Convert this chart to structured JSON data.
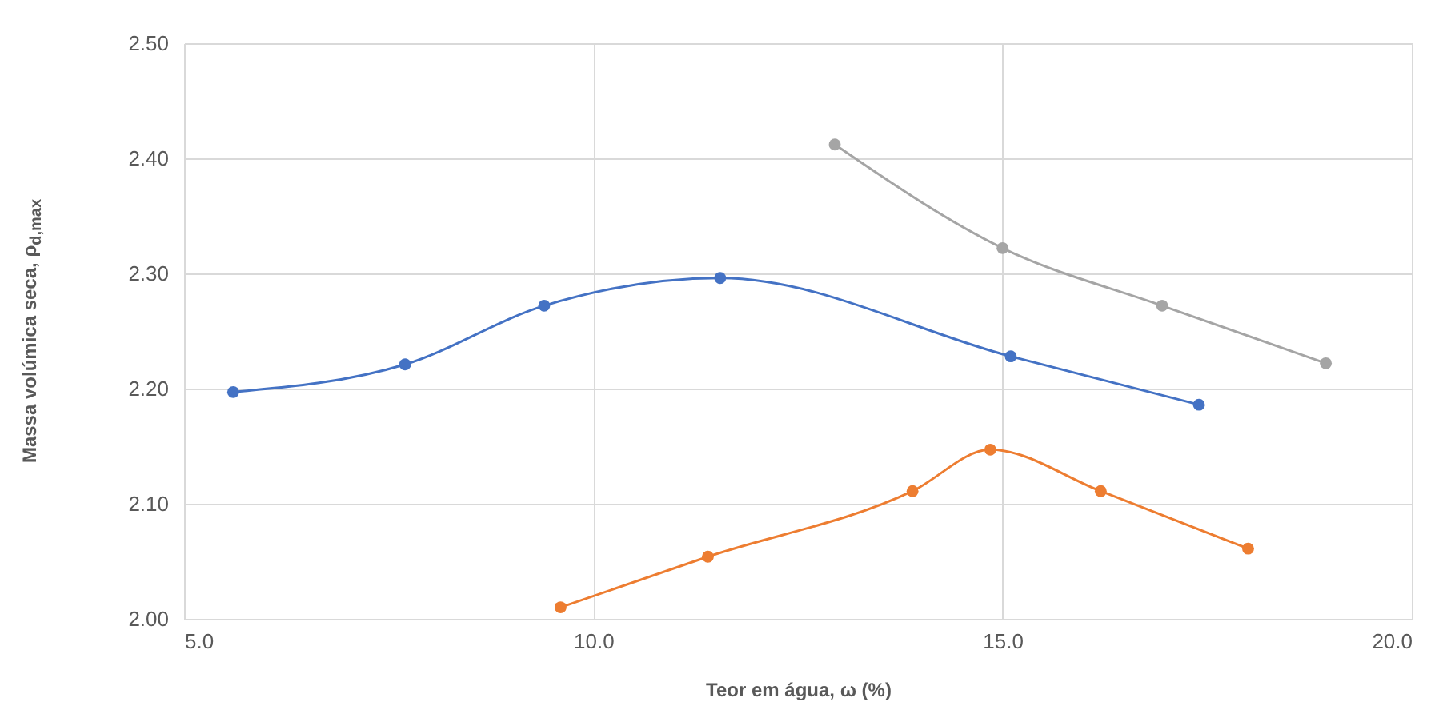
{
  "chart_data": {
    "type": "line",
    "xlabel": "Teor em água, ω (%)",
    "ylabel": "Massa volúmica seca, ρ$_{d,max}$",
    "xlim": [
      5,
      20
    ],
    "xticks": [
      {
        "value": 5,
        "label": "5.0"
      },
      {
        "value": 10,
        "label": "10.0"
      },
      {
        "value": 15,
        "label": "15.0"
      },
      {
        "value": 20,
        "label": "20.0"
      }
    ],
    "ylim": [
      2,
      2.5
    ],
    "yticks": [
      {
        "value": 2,
        "label": "2.00"
      },
      {
        "value": 2.1,
        "label": "2.10"
      },
      {
        "value": 2.2,
        "label": "2.20"
      },
      {
        "value": 2.3,
        "label": "2.30"
      },
      {
        "value": 2.4,
        "label": "2.40"
      },
      {
        "value": 2.5,
        "label": "2.50"
      }
    ],
    "grid": true,
    "marker": "circle",
    "line_style": "solid",
    "series": [
      {
        "color": "#4472c4",
        "x": [
          5.6,
          7.7,
          9.4,
          11.55,
          15.1,
          17.4
        ],
        "values": [
          2.197,
          2.221,
          2.272,
          2.296,
          2.228,
          2.186
        ]
      },
      {
        "color": "#ed7d31",
        "x": [
          9.6,
          11.4,
          13.9,
          14.85,
          16.2,
          18.0
        ],
        "values": [
          2.01,
          2.054,
          2.111,
          2.147,
          2.111,
          2.061
        ]
      },
      {
        "color": "#a5a5a5",
        "x": [
          12.95,
          15.0,
          16.95,
          18.95
        ],
        "values": [
          2.412,
          2.322,
          2.272,
          2.222
        ]
      }
    ]
  }
}
